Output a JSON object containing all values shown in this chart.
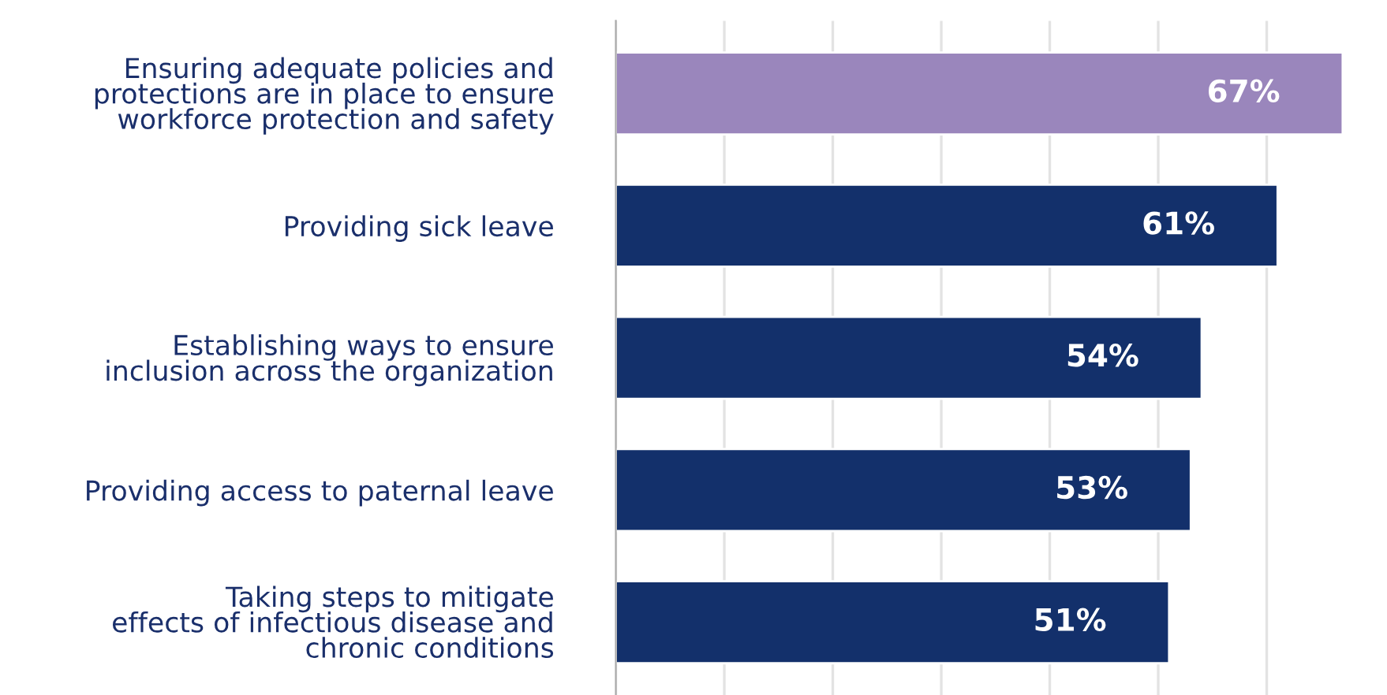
{
  "chart_data": {
    "type": "bar",
    "orientation": "horizontal",
    "categories": [
      "Ensuring adequate policies and\nprotections are in place to ensure\nworkforce protection and safety",
      "Providing sick leave",
      "Establishing ways to ensure\ninclusion across the organization",
      "Providing access to paternal leave",
      "Taking steps to mitigate\neffects of infectious disease and\nchronic conditions"
    ],
    "values": [
      67,
      61,
      54,
      53,
      51
    ],
    "value_labels": [
      "67%",
      "61%",
      "54%",
      "53%",
      "51%"
    ],
    "colors": [
      "#9a86bc",
      "#13306b",
      "#13306b",
      "#13306b",
      "#13306b"
    ],
    "grid": "x",
    "tick_labels": "y"
  }
}
